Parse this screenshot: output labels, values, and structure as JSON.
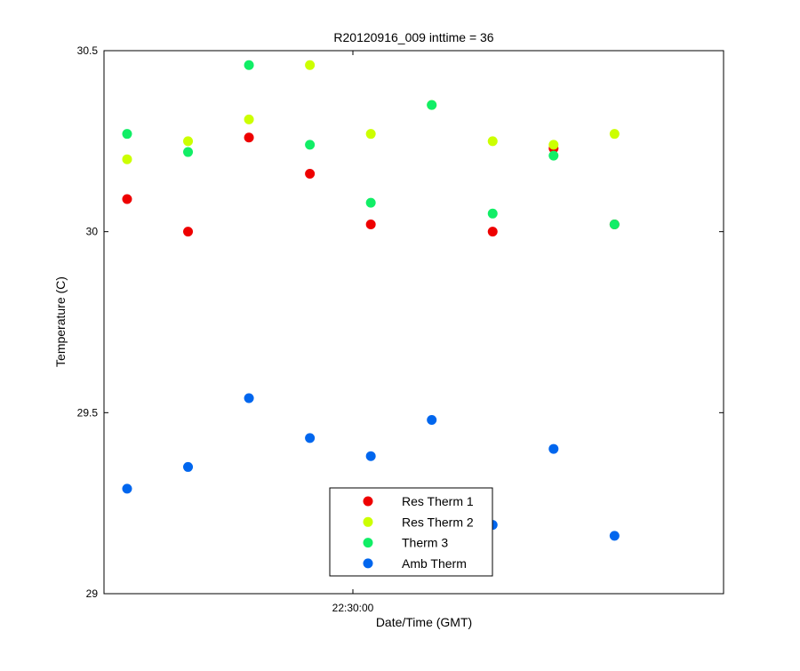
{
  "chart_data": {
    "type": "scatter",
    "title": "R20120916_009 inttime = 36",
    "xlabel": "Date/Time (GMT)",
    "ylabel": "Temperature (C)",
    "ylim": [
      29,
      30.5
    ],
    "yticks": [
      29,
      29.5,
      30,
      30.5
    ],
    "ytick_labels": [
      "29",
      "29.5",
      "30",
      "30.5"
    ],
    "xlim": [
      -25,
      45
    ],
    "xticks": [
      0
    ],
    "xtick_labels": [
      "22:30:00"
    ],
    "x_units": "seconds relative to 22:30:00",
    "grid": false,
    "legend_position": "bottom-center",
    "series": [
      {
        "name": "Res Therm 1",
        "color": "#ee0000",
        "x": [
          -25.2,
          -18.4,
          -11.6,
          -4.8,
          2.0,
          15.6,
          22.4,
          29.2
        ],
        "values": [
          30.09,
          30.0,
          30.26,
          30.16,
          30.02,
          30.0,
          30.23,
          30.02
        ]
      },
      {
        "name": "Res Therm 2",
        "color": "#ccff00",
        "x": [
          -25.2,
          -18.4,
          -11.6,
          -4.8,
          2.0,
          8.8,
          15.6,
          22.4,
          29.2
        ],
        "values": [
          30.2,
          30.25,
          30.31,
          30.46,
          30.27,
          30.35,
          30.25,
          30.24,
          30.27
        ]
      },
      {
        "name": "Therm 3",
        "color": "#11ee66",
        "x": [
          -25.2,
          -18.4,
          -11.6,
          -4.8,
          2.0,
          8.8,
          15.6,
          22.4,
          29.2
        ],
        "values": [
          30.27,
          30.22,
          30.46,
          30.24,
          30.08,
          30.35,
          30.05,
          30.21,
          30.02
        ]
      },
      {
        "name": "Amb Therm",
        "color": "#0066ee",
        "x": [
          -25.2,
          -18.4,
          -11.6,
          -4.8,
          2.0,
          8.8,
          15.6,
          22.4,
          29.2
        ],
        "values": [
          29.29,
          29.35,
          29.54,
          29.43,
          29.38,
          29.48,
          29.19,
          29.4,
          29.16
        ]
      }
    ]
  }
}
